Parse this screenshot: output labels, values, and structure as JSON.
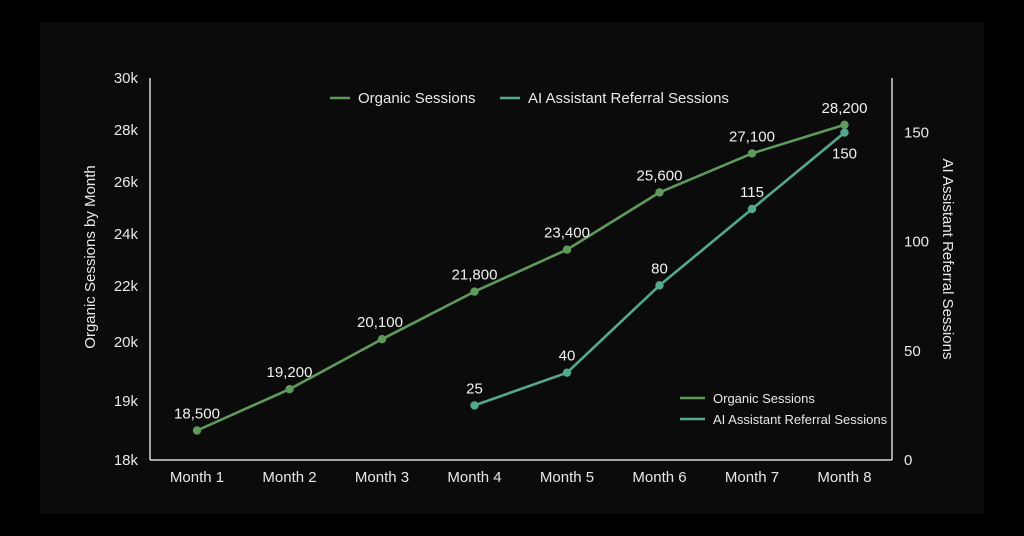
{
  "chart_data": {
    "type": "line",
    "categories": [
      "Month 1",
      "Month 2",
      "Month 3",
      "Month 4",
      "Month 5",
      "Month 6",
      "Month 7",
      "Month 8"
    ],
    "series": [
      {
        "name": "Organic Sessions",
        "axis": "left",
        "color": "#5f9a5c",
        "values": [
          18500,
          19200,
          20100,
          21800,
          23400,
          25600,
          27100,
          28200
        ],
        "labels": [
          "18,500",
          "19,200",
          "20,100",
          "21,800",
          "23,400",
          "25,600",
          "27,100",
          "28,200"
        ]
      },
      {
        "name": "AI Assistant Referral Sessions",
        "axis": "right",
        "color": "#54a88c",
        "values": [
          null,
          null,
          null,
          25,
          40,
          80,
          115,
          150
        ],
        "labels": [
          "",
          "",
          "",
          "25",
          "40",
          "80",
          "115",
          "150"
        ]
      }
    ],
    "ylabel": "Organic Sessions by Month",
    "y2label": "AI Assistant Referral Sessions",
    "yticks": [
      "18k",
      "19k",
      "20k",
      "22k",
      "24k",
      "26k",
      "28k",
      "30k"
    ],
    "y2ticks": [
      "0",
      "50",
      "100",
      "150"
    ],
    "ylim": [
      18000,
      30000
    ],
    "y2lim": [
      0,
      175
    ],
    "grid": false,
    "legends": [
      {
        "placement": "top-center",
        "entries": [
          "Organic Sessions",
          "AI Assistant Referral Sessions"
        ]
      },
      {
        "placement": "bottom-right",
        "entries": [
          "Organic Sessions",
          "AI Assistant Referral Sessions"
        ]
      }
    ]
  }
}
